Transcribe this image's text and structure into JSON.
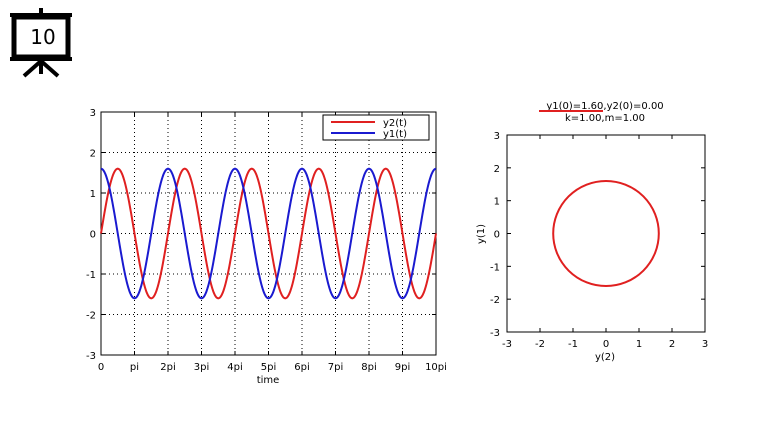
{
  "slide": {
    "number": "10",
    "icon": "projector-screen-icon"
  },
  "chart_data": [
    {
      "type": "line",
      "xlabel": "time",
      "ylabel": "",
      "xlim": [
        0,
        31.4159
      ],
      "ylim": [
        -3,
        3
      ],
      "x_tick_labels": [
        "0",
        "pi",
        "2pi",
        "3pi",
        "4pi",
        "5pi",
        "6pi",
        "7pi",
        "8pi",
        "9pi",
        "10pi"
      ],
      "y_tick_labels": [
        "-3",
        "-2",
        "-1",
        "0",
        "1",
        "2",
        "3"
      ],
      "grid": true,
      "legend_position": "top-right",
      "legend": [
        "y2(t)",
        "y1(t)"
      ],
      "series": [
        {
          "name": "y2(t)",
          "function": "1.6*sin(t)",
          "color": "#e02020"
        },
        {
          "name": "y1(t)",
          "function": "1.6*cos(t)",
          "color": "#1a1ad0"
        }
      ]
    },
    {
      "type": "line",
      "title_lines": [
        "y1(0)=1.60,y2(0)=0.00",
        "k=1.00,m=1.00"
      ],
      "xlabel": "y(2)",
      "ylabel": "y(1)",
      "xlim": [
        -3,
        3
      ],
      "ylim": [
        -3,
        3
      ],
      "x_tick_labels": [
        "-3",
        "-2",
        "-1",
        "0",
        "1",
        "2",
        "3"
      ],
      "y_tick_labels": [
        "-3",
        "-2",
        "-1",
        "0",
        "1",
        "2",
        "3"
      ],
      "grid": false,
      "series": [
        {
          "name": "",
          "shape": "circle",
          "center": [
            0,
            0
          ],
          "radius": 1.6,
          "color": "#e02020"
        }
      ]
    }
  ]
}
